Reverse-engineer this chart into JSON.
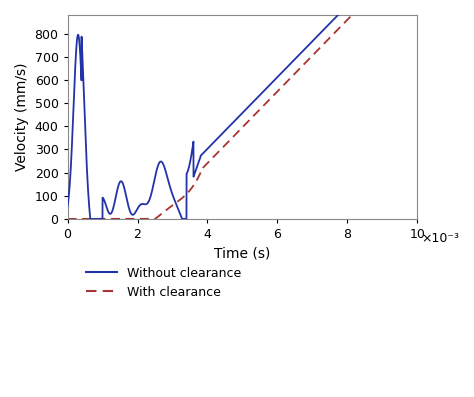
{
  "xlabel": "Time (s)",
  "ylabel": "Velocity (mm/s)",
  "xlim": [
    0,
    0.01
  ],
  "ylim": [
    0,
    880
  ],
  "xticks": [
    0,
    0.002,
    0.004,
    0.006,
    0.008,
    0.01
  ],
  "xtick_labels": [
    "0",
    "2",
    "4",
    "6",
    "8",
    "10"
  ],
  "yticks": [
    0,
    100,
    200,
    300,
    400,
    500,
    600,
    700,
    800
  ],
  "x_scale_label": "×10⁻³",
  "legend": [
    "Without clearance",
    "With clearance"
  ],
  "line1_color": "#2233aa",
  "line2_color": "#aa3333",
  "background_color": "#ffffff"
}
